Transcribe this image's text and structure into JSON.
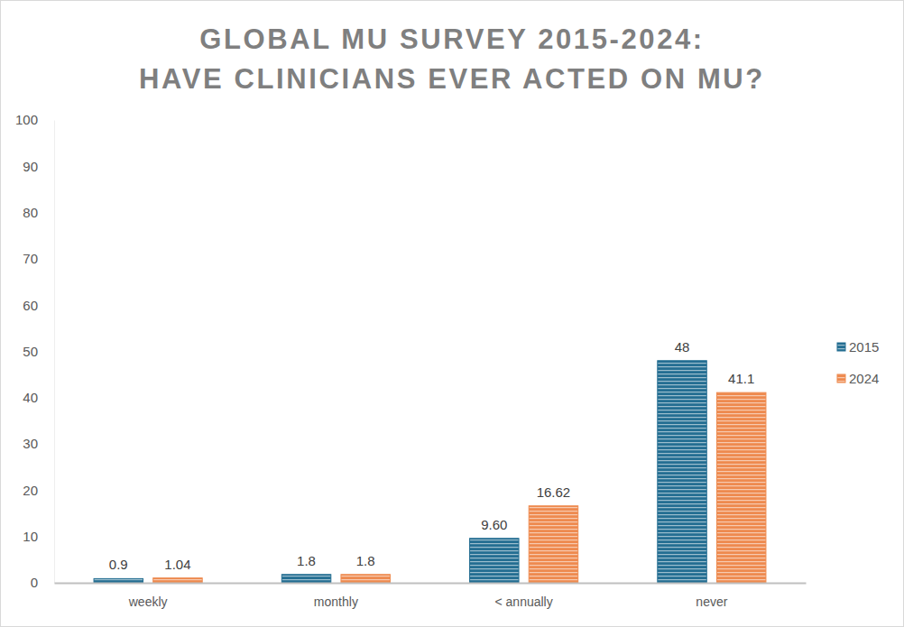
{
  "chart_data": {
    "type": "bar",
    "title": "GLOBAL MU SURVEY 2015-2024:\nHAVE CLINICIANS EVER ACTED ON MU?",
    "categories": [
      "weekly",
      "monthly",
      "< annually",
      "never"
    ],
    "series": [
      {
        "name": "2015",
        "color": "#246e92",
        "values": [
          0.9,
          1.8,
          9.6,
          48
        ],
        "value_labels": [
          "0.9",
          "1.8",
          "9.60",
          "48"
        ]
      },
      {
        "name": "2024",
        "color": "#ee8a4f",
        "values": [
          1.04,
          1.8,
          16.62,
          41.1
        ],
        "value_labels": [
          "1.04",
          "1.8",
          "16.62",
          "41.1"
        ]
      }
    ],
    "ylim": [
      0,
      100
    ],
    "yticks": [
      0,
      10,
      20,
      30,
      40,
      50,
      60,
      70,
      80,
      90,
      100
    ],
    "grid": false,
    "legend": "right",
    "data_labels": true
  }
}
